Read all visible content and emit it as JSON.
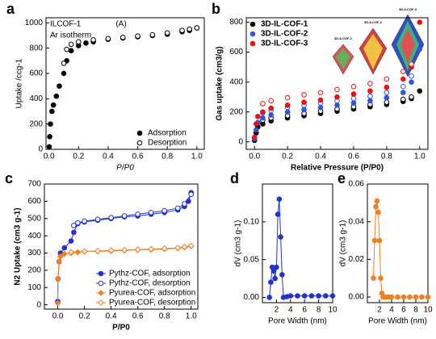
{
  "chart_data": [
    {
      "panel": "a",
      "type": "scatter",
      "xlabel": "P/P0",
      "ylabel": "Uptake /ccg-1",
      "annotations": [
        "ILCOF-1",
        "Ar isotherm",
        "(A)"
      ],
      "legend": "lower right",
      "xlim": [
        -0.02,
        1.05
      ],
      "ylim": [
        0,
        1040
      ],
      "xticks": [
        {
          "value": 0,
          "label": "0.0"
        },
        0.2,
        0.4,
        0.6,
        0.8,
        {
          "value": 1,
          "label": "1.0"
        }
      ],
      "yticks": [
        0,
        200,
        400,
        600,
        800,
        1000
      ],
      "series": [
        {
          "name": "Adsorption",
          "color": "#000000",
          "filled": true,
          "marker": "circle",
          "x": [
            0.002,
            0.005,
            0.01,
            0.02,
            0.03,
            0.05,
            0.07,
            0.1,
            0.12,
            0.15,
            0.2,
            0.25,
            0.3,
            0.4,
            0.5,
            0.6,
            0.7,
            0.8,
            0.9,
            0.95,
            1.0
          ],
          "values": [
            20,
            100,
            200,
            300,
            350,
            420,
            500,
            600,
            700,
            780,
            820,
            840,
            850,
            870,
            880,
            890,
            900,
            910,
            930,
            940,
            960
          ]
        },
        {
          "name": "Desorption",
          "color": "#000000",
          "filled": false,
          "marker": "circle",
          "x": [
            1.0,
            0.95,
            0.9,
            0.8,
            0.7,
            0.6,
            0.5,
            0.4,
            0.3,
            0.2,
            0.15,
            0.12,
            0.1
          ],
          "values": [
            960,
            950,
            940,
            920,
            905,
            895,
            885,
            875,
            865,
            850,
            830,
            790,
            680
          ]
        }
      ]
    },
    {
      "panel": "b",
      "type": "scatter",
      "xlabel": "Relative Pressure (P/P0)",
      "ylabel": "Gas uptake (cm3/g)",
      "inset_labels": [
        "3D-ILCOF-1",
        "3D-ILCOF-2",
        "3D-ILCOF-3"
      ],
      "legend": "upper left",
      "xlim": [
        -0.05,
        1.05
      ],
      "ylim": [
        -50,
        830
      ],
      "xticks": [
        {
          "value": 0,
          "label": "0.0"
        },
        0.2,
        0.4,
        0.6,
        0.8,
        {
          "value": 1,
          "label": "1.0"
        }
      ],
      "yticks": [
        0,
        200,
        400,
        600,
        800
      ],
      "series": [
        {
          "name": "3D-IL-COF-1",
          "color": "#000000",
          "filled": true,
          "marker": "circle",
          "x": [
            0,
            0.01,
            0.02,
            0.05,
            0.1,
            0.2,
            0.3,
            0.4,
            0.5,
            0.6,
            0.7,
            0.8,
            0.9,
            0.95,
            1.0
          ],
          "values": [
            10,
            60,
            100,
            120,
            140,
            160,
            175,
            190,
            205,
            220,
            235,
            250,
            270,
            290,
            340
          ],
          "desorption_x": [
            0.95,
            0.9,
            0.8,
            0.7,
            0.6,
            0.5,
            0.4,
            0.3,
            0.2,
            0.1,
            0.05
          ],
          "desorption_values": [
            300,
            285,
            265,
            250,
            235,
            220,
            205,
            190,
            175,
            160,
            145
          ]
        },
        {
          "name": "3D-IL-COF-2",
          "color": "#3355dd",
          "filled": true,
          "marker": "circle",
          "x": [
            0,
            0.01,
            0.02,
            0.05,
            0.1,
            0.2,
            0.3,
            0.4,
            0.5,
            0.6,
            0.7,
            0.8,
            0.9,
            0.95,
            1.0
          ],
          "values": [
            20,
            80,
            130,
            160,
            180,
            200,
            215,
            230,
            245,
            260,
            275,
            295,
            330,
            400,
            620
          ],
          "desorption_x": [
            0.95,
            0.9,
            0.8,
            0.7,
            0.6,
            0.5,
            0.4,
            0.3,
            0.2,
            0.1,
            0.05
          ],
          "desorption_values": [
            440,
            370,
            330,
            305,
            290,
            275,
            260,
            245,
            230,
            210,
            195
          ]
        },
        {
          "name": "3D-IL-COF-3",
          "color": "#ee1111",
          "filled": true,
          "marker": "circle",
          "x": [
            0,
            0.01,
            0.02,
            0.05,
            0.1,
            0.2,
            0.3,
            0.4,
            0.5,
            0.6,
            0.7,
            0.8,
            0.9,
            0.95,
            1.0
          ],
          "values": [
            30,
            120,
            170,
            200,
            225,
            245,
            265,
            280,
            300,
            320,
            340,
            365,
            420,
            500,
            800
          ],
          "desorption_x": [
            0.95,
            0.9,
            0.8,
            0.7,
            0.6,
            0.5,
            0.4,
            0.3,
            0.2,
            0.1,
            0.05
          ],
          "desorption_values": [
            520,
            470,
            420,
            390,
            370,
            350,
            330,
            315,
            295,
            275,
            255
          ]
        }
      ]
    },
    {
      "panel": "c",
      "type": "line",
      "xlabel": "P/P0",
      "ylabel": "N2 Uptake (cm3 g-1)",
      "legend": "lower right",
      "xlim": [
        -0.1,
        1.05
      ],
      "ylim": [
        -25,
        700
      ],
      "xticks": [
        {
          "value": 0,
          "label": "0.0"
        },
        0.2,
        0.4,
        0.6,
        0.8,
        {
          "value": 1,
          "label": "1.0"
        }
      ],
      "yticks": [
        0,
        100,
        200,
        300,
        400,
        500,
        600,
        700
      ],
      "series": [
        {
          "name": "Pythz-COF, adsorption",
          "color": "#2233cc",
          "filled": true,
          "marker": "circle",
          "x": [
            0,
            0.002,
            0.01,
            0.02,
            0.05,
            0.1,
            0.12,
            0.15,
            0.2,
            0.3,
            0.4,
            0.5,
            0.6,
            0.7,
            0.8,
            0.9,
            0.95,
            0.98,
            1.0
          ],
          "values": [
            20,
            150,
            250,
            300,
            330,
            370,
            420,
            470,
            480,
            490,
            500,
            510,
            515,
            525,
            535,
            550,
            570,
            600,
            650
          ]
        },
        {
          "name": "Pythz-COF, desorption",
          "color": "#2233cc",
          "filled": false,
          "marker": "circle",
          "x": [
            1.0,
            0.95,
            0.9,
            0.8,
            0.7,
            0.6,
            0.5,
            0.4,
            0.3,
            0.2,
            0.15,
            0.12
          ],
          "values": [
            640,
            585,
            560,
            545,
            535,
            525,
            515,
            505,
            495,
            485,
            475,
            460
          ]
        },
        {
          "name": "Pyurea-COF, adsorption",
          "color": "#f08020",
          "filled": true,
          "marker": "diamond",
          "x": [
            0,
            0.002,
            0.01,
            0.02,
            0.05,
            0.1,
            0.15,
            0.2,
            0.3,
            0.4,
            0.5,
            0.6,
            0.7,
            0.8,
            0.9,
            0.95,
            1.0
          ],
          "values": [
            10,
            150,
            250,
            280,
            295,
            300,
            305,
            308,
            310,
            312,
            315,
            318,
            320,
            323,
            328,
            333,
            340
          ]
        },
        {
          "name": "Pyurea-COF, desorption",
          "color": "#f08020",
          "filled": false,
          "marker": "diamond",
          "x": [
            1.0,
            0.95,
            0.9,
            0.8,
            0.7,
            0.6,
            0.5,
            0.4,
            0.3,
            0.2,
            0.1
          ],
          "values": [
            342,
            336,
            330,
            326,
            323,
            320,
            318,
            315,
            312,
            310,
            306
          ]
        }
      ]
    },
    {
      "panel": "d",
      "type": "line",
      "xlabel": "Pore Width (nm)",
      "ylabel": "dV (cm3 g-1)",
      "xlim": [
        0,
        10
      ],
      "ylim": [
        -0.007,
        0.15
      ],
      "xticks": [
        2,
        4,
        6,
        8,
        10
      ],
      "yticks": [
        {
          "value": 0,
          "label": "0.00"
        },
        0.05,
        {
          "value": 0.1,
          "label": "0.10"
        }
      ],
      "series": [
        {
          "color": "#2233cc",
          "filled": true,
          "marker": "circle",
          "x": [
            1.0,
            1.2,
            1.4,
            1.6,
            1.8,
            2.0,
            2.2,
            2.4,
            2.6,
            2.8,
            3.0,
            3.5,
            4,
            5,
            6,
            7,
            8,
            9,
            10
          ],
          "values": [
            0.0,
            0.02,
            0.04,
            0.035,
            0.025,
            0.04,
            0.11,
            0.13,
            0.08,
            0.03,
            0.0,
            0.001,
            0.002,
            0.002,
            0.002,
            0.002,
            0.002,
            0.002,
            0.002
          ]
        }
      ]
    },
    {
      "panel": "e",
      "type": "line",
      "xlabel": "Pore Width (nm)",
      "ylabel": "dV (cm3 g-1)",
      "xlim": [
        0,
        10
      ],
      "ylim": [
        -0.003,
        0.06
      ],
      "xticks": [
        2,
        4,
        6,
        8,
        10
      ],
      "yticks": [
        {
          "value": 0,
          "label": "0.00"
        },
        0.02,
        0.04,
        0.06
      ],
      "series": [
        {
          "color": "#f08020",
          "filled": true,
          "marker": "circle",
          "x": [
            1.0,
            1.2,
            1.4,
            1.6,
            1.8,
            2.0,
            2.2,
            2.4,
            2.6,
            2.8,
            3.0,
            3.5,
            4,
            5,
            6,
            7,
            8,
            9,
            10
          ],
          "values": [
            0.01,
            0.03,
            0.048,
            0.051,
            0.045,
            0.03,
            0.01,
            0.002,
            0,
            0,
            0,
            0,
            0,
            0,
            0,
            0,
            0,
            0,
            0
          ]
        }
      ]
    }
  ]
}
